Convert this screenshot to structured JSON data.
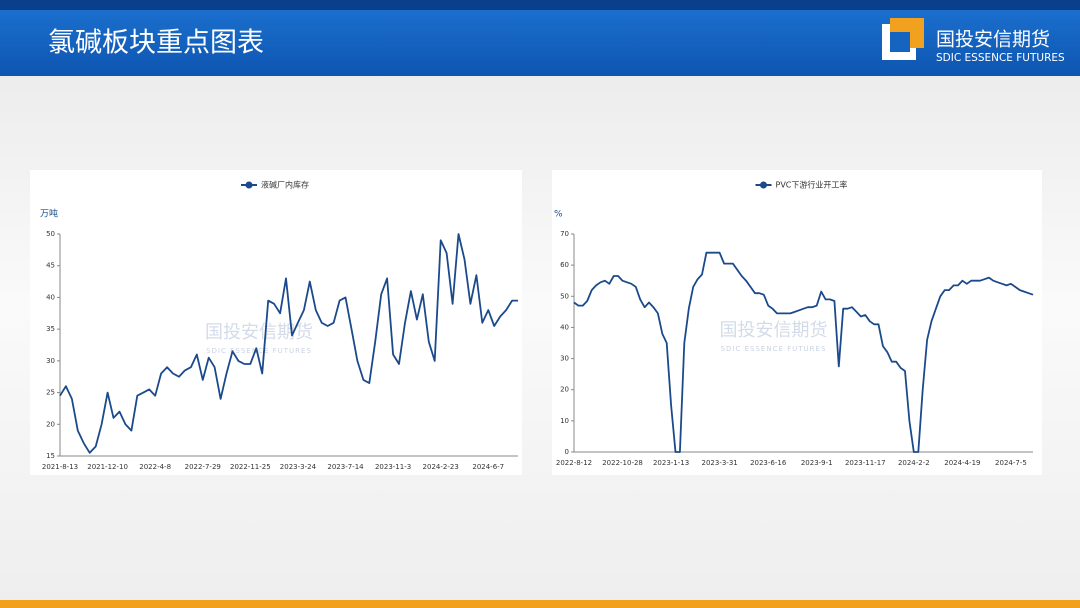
{
  "header": {
    "title": "氯碱板块重点图表",
    "logo_cn": "国投安信期货",
    "logo_en": "SDIC ESSENCE FUTURES"
  },
  "watermark": {
    "cn": "国投安信期货",
    "en": "SDIC ESSENCE FUTURES"
  },
  "chart_data": [
    {
      "type": "line",
      "ylabel": "万吨",
      "ylim": [
        15,
        50
      ],
      "yticks": [
        15,
        20,
        25,
        30,
        35,
        40,
        45,
        50
      ],
      "x": [
        "2021-8-13",
        null,
        null,
        null,
        null,
        null,
        null,
        null,
        "2021-12-10",
        null,
        null,
        null,
        null,
        null,
        null,
        null,
        "2022-4-8",
        null,
        null,
        null,
        null,
        null,
        null,
        null,
        "2022-7-29",
        null,
        null,
        null,
        null,
        null,
        null,
        null,
        "2022-11-25",
        null,
        null,
        null,
        null,
        null,
        null,
        null,
        "2023-3-24",
        null,
        null,
        null,
        null,
        null,
        null,
        null,
        "2023-7-14",
        null,
        null,
        null,
        null,
        null,
        null,
        null,
        "2023-11-3",
        null,
        null,
        null,
        null,
        null,
        null,
        null,
        "2024-2-23",
        null,
        null,
        null,
        null,
        null,
        null,
        null,
        "2024-6-7",
        null,
        null,
        null,
        null,
        null
      ],
      "series": [
        {
          "name": "液碱厂内库存",
          "color": "#1b4a8c",
          "values": [
            24.5,
            26,
            24,
            19,
            17,
            15.5,
            16.5,
            20,
            25,
            21,
            22,
            20,
            19,
            24.5,
            25,
            25.5,
            24.5,
            28,
            29,
            28,
            27.5,
            28.5,
            29,
            31,
            27,
            30.5,
            29,
            24,
            28,
            31.5,
            30,
            29.5,
            29.5,
            32,
            28,
            39.5,
            39,
            37.5,
            43,
            34,
            36,
            38,
            42.5,
            38,
            36,
            35.5,
            36,
            39.5,
            40,
            35,
            30,
            27,
            26.5,
            33,
            40.5,
            43,
            31,
            29.5,
            36,
            41,
            36.5,
            40.5,
            33,
            30,
            49,
            47,
            39,
            50,
            46,
            39,
            43.5,
            36,
            38,
            35.5,
            37,
            38,
            39.5,
            39.5
          ]
        }
      ]
    },
    {
      "type": "line",
      "ylabel": "%",
      "ylim": [
        0,
        70
      ],
      "yticks": [
        0,
        10,
        20,
        30,
        40,
        50,
        60,
        70
      ],
      "x": [
        "2022-8-12",
        null,
        null,
        null,
        null,
        null,
        null,
        null,
        null,
        null,
        null,
        "2022-10-28",
        null,
        null,
        null,
        null,
        null,
        null,
        null,
        null,
        null,
        null,
        "2023-1-13",
        null,
        null,
        null,
        null,
        null,
        null,
        null,
        null,
        null,
        null,
        "2023-3-31",
        null,
        null,
        null,
        null,
        null,
        null,
        null,
        null,
        null,
        null,
        "2023-6-16",
        null,
        null,
        null,
        null,
        null,
        null,
        null,
        null,
        null,
        null,
        "2023-9-1",
        null,
        null,
        null,
        null,
        null,
        null,
        null,
        null,
        null,
        null,
        "2023-11-17",
        null,
        null,
        null,
        null,
        null,
        null,
        null,
        null,
        null,
        null,
        "2024-2-2",
        null,
        null,
        null,
        null,
        null,
        null,
        null,
        null,
        null,
        null,
        "2024-4-19",
        null,
        null,
        null,
        null,
        null,
        null,
        null,
        null,
        null,
        null,
        "2024-7-5",
        null,
        null,
        null,
        null,
        null
      ],
      "series": [
        {
          "name": "PVC下游行业开工率",
          "color": "#1b4a8c",
          "values": [
            48,
            47,
            47,
            48.5,
            52,
            53.5,
            54.5,
            55,
            54,
            56.5,
            56.5,
            55,
            54.5,
            54,
            53,
            49,
            46.5,
            48,
            46.5,
            44.5,
            38,
            35,
            15,
            0,
            0,
            35,
            46,
            53,
            55.5,
            57,
            64,
            64,
            64,
            64,
            60.5,
            60.5,
            60.5,
            58.5,
            56.5,
            55,
            53,
            51,
            51,
            50.5,
            47,
            46,
            44.5,
            44.5,
            44.5,
            44.5,
            45,
            45.5,
            46,
            46.5,
            46.5,
            47,
            51.5,
            49,
            49,
            48.5,
            27.5,
            46,
            46,
            46.5,
            45,
            43.5,
            44,
            42,
            41,
            41,
            34,
            32,
            29,
            29,
            27,
            26,
            10,
            0,
            0,
            20,
            36,
            42,
            46,
            50,
            52,
            52,
            53.5,
            53.5,
            55,
            54,
            55,
            55,
            55,
            55.5,
            56,
            55,
            54.5,
            54,
            53.5,
            54,
            53,
            52,
            51.5,
            51,
            50.5
          ]
        }
      ]
    }
  ]
}
